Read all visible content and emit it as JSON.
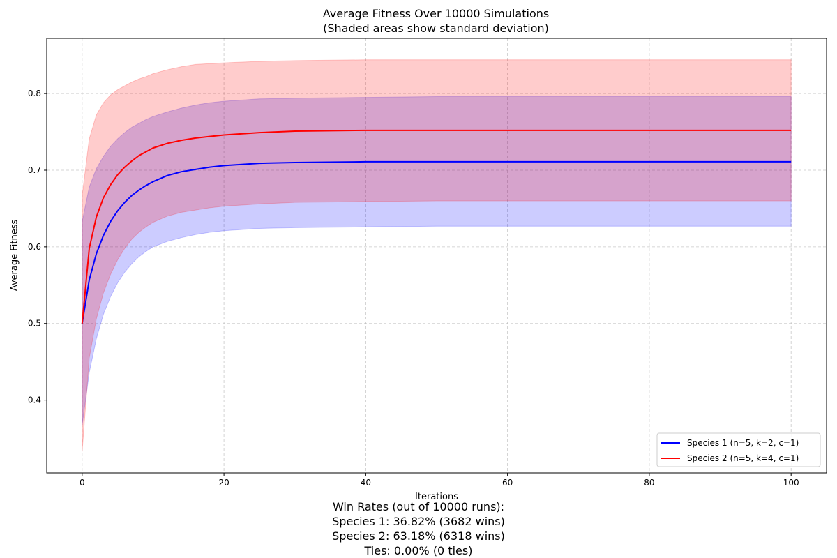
{
  "chart_data": {
    "type": "line",
    "title": "Average Fitness Over 10000 Simulations",
    "subtitle": "(Shaded areas show standard deviation)",
    "xlabel": "Iterations",
    "ylabel": "Average Fitness",
    "xlim": [
      -5,
      105
    ],
    "ylim": [
      0.305,
      0.872
    ],
    "xticks": [
      0,
      20,
      40,
      60,
      80,
      100
    ],
    "yticks": [
      0.4,
      0.5,
      0.6,
      0.7,
      0.8
    ],
    "xtick_labels": [
      "0",
      "20",
      "40",
      "60",
      "80",
      "100"
    ],
    "ytick_labels": [
      "0.4",
      "0.5",
      "0.6",
      "0.7",
      "0.8"
    ],
    "grid": true,
    "legend_position": "bottom-right",
    "x": [
      0,
      1,
      2,
      3,
      4,
      5,
      6,
      7,
      8,
      9,
      10,
      12,
      14,
      16,
      18,
      20,
      25,
      30,
      40,
      50,
      60,
      70,
      80,
      90,
      100
    ],
    "series": [
      {
        "name": "Species 1 (n=5, k=2, c=1)",
        "color": "#0000ff",
        "fill_color": "#0000ff",
        "values": [
          0.5,
          0.557,
          0.591,
          0.615,
          0.633,
          0.647,
          0.658,
          0.667,
          0.674,
          0.68,
          0.685,
          0.693,
          0.698,
          0.701,
          0.704,
          0.706,
          0.709,
          0.71,
          0.711,
          0.711,
          0.711,
          0.711,
          0.711,
          0.711,
          0.711
        ],
        "std_lower": [
          0.367,
          0.436,
          0.48,
          0.512,
          0.535,
          0.553,
          0.567,
          0.578,
          0.587,
          0.594,
          0.6,
          0.607,
          0.612,
          0.616,
          0.619,
          0.621,
          0.624,
          0.625,
          0.626,
          0.627,
          0.627,
          0.627,
          0.627,
          0.627,
          0.627
        ],
        "std_upper": [
          0.633,
          0.678,
          0.702,
          0.718,
          0.731,
          0.741,
          0.749,
          0.756,
          0.761,
          0.766,
          0.77,
          0.776,
          0.781,
          0.785,
          0.788,
          0.79,
          0.793,
          0.794,
          0.795,
          0.796,
          0.796,
          0.796,
          0.796,
          0.796,
          0.796
        ]
      },
      {
        "name": "Species 2 (n=5, k=4, c=1)",
        "color": "#ff0000",
        "fill_color": "#ff0000",
        "values": [
          0.5,
          0.598,
          0.639,
          0.664,
          0.681,
          0.694,
          0.704,
          0.712,
          0.719,
          0.724,
          0.729,
          0.735,
          0.739,
          0.742,
          0.744,
          0.746,
          0.749,
          0.751,
          0.752,
          0.752,
          0.752,
          0.752,
          0.752,
          0.752,
          0.752
        ],
        "std_lower": [
          0.333,
          0.455,
          0.506,
          0.54,
          0.564,
          0.583,
          0.598,
          0.61,
          0.619,
          0.626,
          0.632,
          0.64,
          0.645,
          0.648,
          0.651,
          0.653,
          0.656,
          0.658,
          0.659,
          0.66,
          0.66,
          0.66,
          0.66,
          0.66,
          0.66
        ],
        "std_upper": [
          0.667,
          0.741,
          0.772,
          0.788,
          0.798,
          0.805,
          0.81,
          0.815,
          0.819,
          0.822,
          0.826,
          0.831,
          0.835,
          0.838,
          0.839,
          0.84,
          0.842,
          0.843,
          0.844,
          0.844,
          0.844,
          0.844,
          0.844,
          0.844,
          0.844
        ]
      }
    ]
  },
  "win_rates": {
    "header": "Win Rates (out of 10000 runs):",
    "species1": "Species 1: 36.82% (3682 wins)",
    "species2": "Species 2: 63.18% (6318 wins)",
    "ties": "Ties: 0.00% (0 ties)"
  }
}
